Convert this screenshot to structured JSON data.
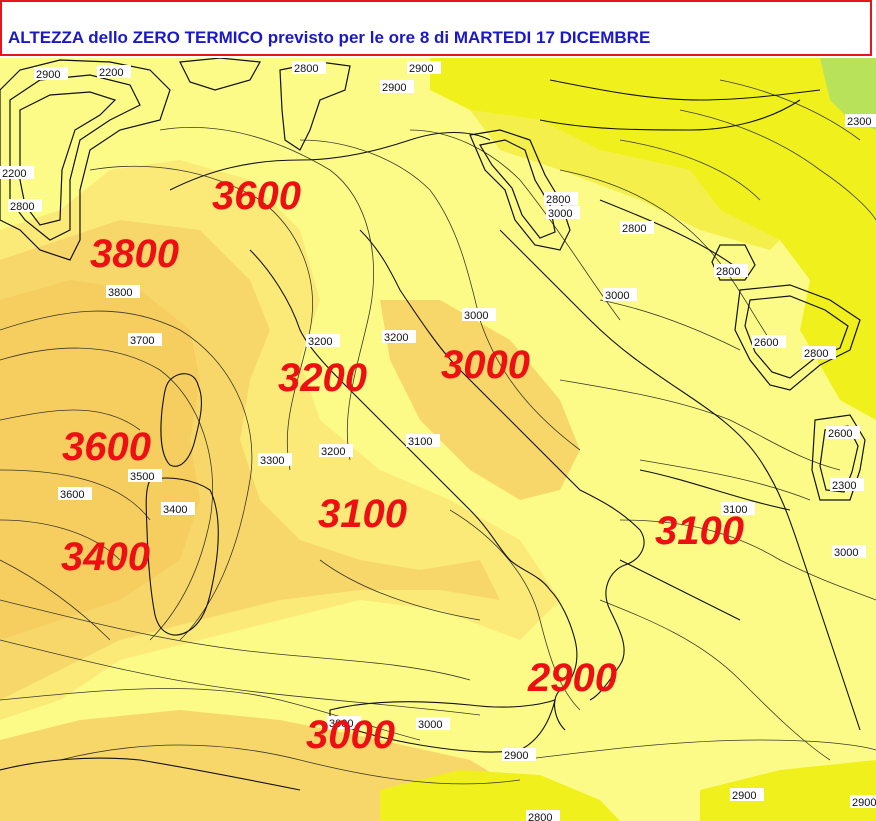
{
  "title": "ALTEZZA dello ZERO TERMICO previsto per le ore 8 di MARTEDI 17 DICEMBRE",
  "colors": {
    "title_text": "#1a18c8",
    "title_border": "#e8141c",
    "big_labels": "#ee0f14",
    "band_light": "#fdfb88",
    "band_mid": "#fbea78",
    "band_warm": "#f8d76a",
    "band_deep": "#f6cd5f",
    "band_yellow": "#f0f01c",
    "band_green": "#b8e25a"
  },
  "big_labels": [
    {
      "id": "big-3600-nw",
      "text": "3600"
    },
    {
      "id": "big-3800",
      "text": "3800"
    },
    {
      "id": "big-3200",
      "text": "3200"
    },
    {
      "id": "big-3000-center",
      "text": "3000"
    },
    {
      "id": "big-3600-w",
      "text": "3600"
    },
    {
      "id": "big-3100-tyrr",
      "text": "3100"
    },
    {
      "id": "big-3400",
      "text": "3400"
    },
    {
      "id": "big-3100-east",
      "text": "3100"
    },
    {
      "id": "big-2900",
      "text": "2900"
    },
    {
      "id": "big-3000-south",
      "text": "3000"
    }
  ],
  "small_labels": [
    {
      "id": "s1",
      "text": "2800"
    },
    {
      "id": "s2",
      "text": "2900"
    },
    {
      "id": "s3",
      "text": "2200"
    },
    {
      "id": "s4",
      "text": "2900"
    },
    {
      "id": "s5",
      "text": "2900"
    },
    {
      "id": "s6",
      "text": "2800"
    },
    {
      "id": "s7",
      "text": "3800"
    },
    {
      "id": "s8",
      "text": "3700"
    },
    {
      "id": "s9",
      "text": "3200"
    },
    {
      "id": "s10",
      "text": "3200"
    },
    {
      "id": "s11",
      "text": "3000"
    },
    {
      "id": "s12",
      "text": "3000"
    },
    {
      "id": "s13",
      "text": "2800"
    },
    {
      "id": "s14",
      "text": "3100"
    },
    {
      "id": "s15",
      "text": "3300"
    },
    {
      "id": "s16",
      "text": "3200"
    },
    {
      "id": "s17",
      "text": "3600"
    },
    {
      "id": "s18",
      "text": "3500"
    },
    {
      "id": "s19",
      "text": "3400"
    },
    {
      "id": "s20",
      "text": "3100"
    },
    {
      "id": "s21",
      "text": "3000"
    },
    {
      "id": "s22",
      "text": "3000"
    },
    {
      "id": "s23",
      "text": "3000"
    },
    {
      "id": "s24",
      "text": "2900"
    },
    {
      "id": "s25",
      "text": "2900"
    },
    {
      "id": "s26",
      "text": "2800"
    },
    {
      "id": "s27",
      "text": "2600"
    },
    {
      "id": "s28",
      "text": "2300"
    },
    {
      "id": "s29",
      "text": "2300"
    },
    {
      "id": "s30",
      "text": "2200"
    },
    {
      "id": "s31",
      "text": "2600"
    },
    {
      "id": "s32",
      "text": "2800"
    },
    {
      "id": "s33",
      "text": "3000"
    },
    {
      "id": "s34",
      "text": "2800"
    },
    {
      "id": "s35",
      "text": "2900"
    },
    {
      "id": "s36",
      "text": "2800"
    }
  ]
}
